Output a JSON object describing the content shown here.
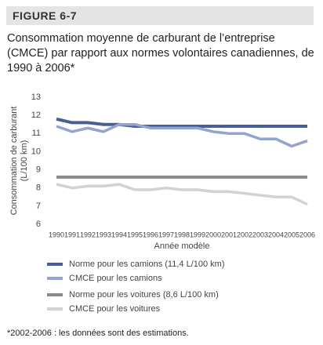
{
  "chart_data": {
    "type": "line",
    "figure_label": "FIGURE 6-7",
    "title": "Consommation moyenne de carburant de l’entreprise (CMCE) par rapport aux normes volontaires canadiennes, de 1990 à 2006*",
    "y_label": [
      "Consommation de carburant",
      "(L/100 km)"
    ],
    "x_label": "Année modèle",
    "categories": [
      "1990",
      "1991",
      "1992",
      "1993",
      "1994",
      "1995",
      "1996",
      "1997",
      "1998",
      "1999",
      "2000",
      "2001",
      "2002",
      "2003",
      "2004",
      "2005",
      "2006"
    ],
    "ylim": [
      6,
      13
    ],
    "yticks": [
      6,
      7,
      8,
      9,
      10,
      11,
      12,
      13
    ],
    "series": [
      {
        "name": "Norme pour les camions (11,4 L/100 km)",
        "color": "#4a5e96",
        "values": [
          11.8,
          11.6,
          11.6,
          11.5,
          11.5,
          11.4,
          11.4,
          11.4,
          11.4,
          11.4,
          11.4,
          11.4,
          11.4,
          11.4,
          11.4,
          11.4,
          11.4
        ]
      },
      {
        "name": "CMCE pour les camions",
        "color": "#93a5cc",
        "values": [
          11.4,
          11.1,
          11.3,
          11.1,
          11.5,
          11.5,
          11.3,
          11.3,
          11.3,
          11.3,
          11.1,
          11.0,
          11.0,
          10.7,
          10.7,
          10.3,
          10.6
        ]
      },
      {
        "name": "Norme pour les voitures (8,6 L/100 km)",
        "color": "#8a8a8a",
        "values": [
          8.6,
          8.6,
          8.6,
          8.6,
          8.6,
          8.6,
          8.6,
          8.6,
          8.6,
          8.6,
          8.6,
          8.6,
          8.6,
          8.6,
          8.6,
          8.6,
          8.6
        ]
      },
      {
        "name": "CMCE pour les voitures",
        "color": "#d2d2d2",
        "values": [
          8.2,
          8.0,
          8.1,
          8.1,
          8.2,
          7.9,
          7.9,
          8.0,
          7.9,
          7.9,
          7.8,
          7.8,
          7.7,
          7.6,
          7.5,
          7.5,
          7.1
        ]
      }
    ],
    "footnote": "*2002-2006 : les données sont des estimations."
  }
}
